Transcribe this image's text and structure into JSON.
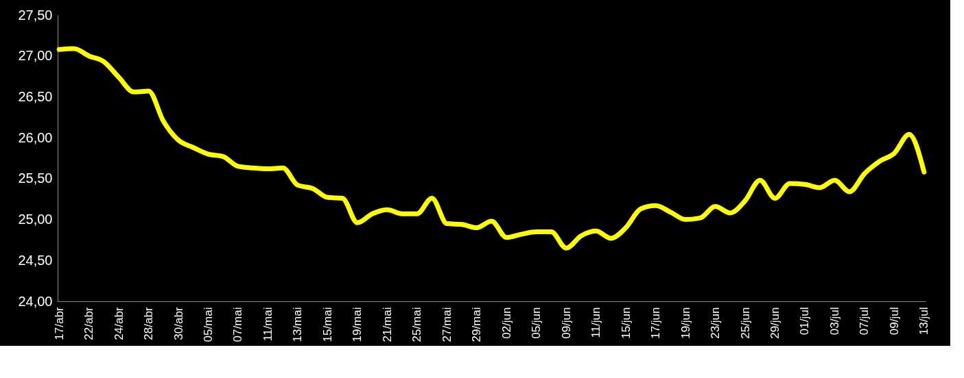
{
  "chart_data": {
    "type": "line",
    "categories": [
      "17/abr",
      null,
      "22/abr",
      null,
      "24/abr",
      null,
      "28/abr",
      null,
      "30/abr",
      null,
      "05/mai",
      null,
      "07/mai",
      null,
      "11/mai",
      null,
      "13/mai",
      null,
      "15/mai",
      null,
      "19/mai",
      null,
      "21/mai",
      null,
      "25/mai",
      null,
      "27/mai",
      null,
      "29/mai",
      null,
      "02/jun",
      null,
      "05/jun",
      null,
      "09/jun",
      null,
      "11/jun",
      null,
      "15/jun",
      null,
      "17/jun",
      null,
      "19/jun",
      null,
      "23/jun",
      null,
      "25/jun",
      null,
      "29/jun",
      null,
      "01/jul",
      null,
      "03/jul",
      null,
      "07/jul",
      null,
      "09/jul",
      null,
      "13/jul"
    ],
    "series": [
      {
        "color": "#ffff00",
        "values": [
          27.08,
          27.09,
          27.0,
          26.93,
          26.74,
          26.56,
          26.57,
          26.2,
          25.97,
          25.88,
          25.8,
          25.77,
          25.65,
          25.63,
          25.62,
          25.63,
          25.42,
          25.38,
          25.27,
          25.26,
          24.96,
          25.07,
          25.12,
          25.07,
          25.07,
          25.26,
          24.95,
          24.94,
          24.9,
          24.98,
          24.78,
          24.82,
          24.85,
          24.85,
          24.65,
          24.8,
          24.86,
          24.77,
          24.9,
          25.13,
          25.17,
          25.09,
          25.0,
          25.02,
          25.16,
          25.08,
          25.23,
          25.48,
          25.26,
          25.44,
          25.43,
          25.39,
          25.48,
          25.34,
          25.56,
          25.71,
          25.81,
          26.04,
          25.58
        ]
      }
    ],
    "ylim": [
      24.0,
      27.5
    ],
    "yticks": [
      {
        "value": 24.0,
        "label": "24,00"
      },
      {
        "value": 24.5,
        "label": "24,50"
      },
      {
        "value": 25.0,
        "label": "25,00"
      },
      {
        "value": 25.5,
        "label": "25,50"
      },
      {
        "value": 26.0,
        "label": "26,00"
      },
      {
        "value": 26.5,
        "label": "26,50"
      },
      {
        "value": 27.0,
        "label": "27,00"
      },
      {
        "value": 27.5,
        "label": "27,50"
      }
    ],
    "grid": false,
    "marker": "none",
    "line_style": "solid"
  }
}
